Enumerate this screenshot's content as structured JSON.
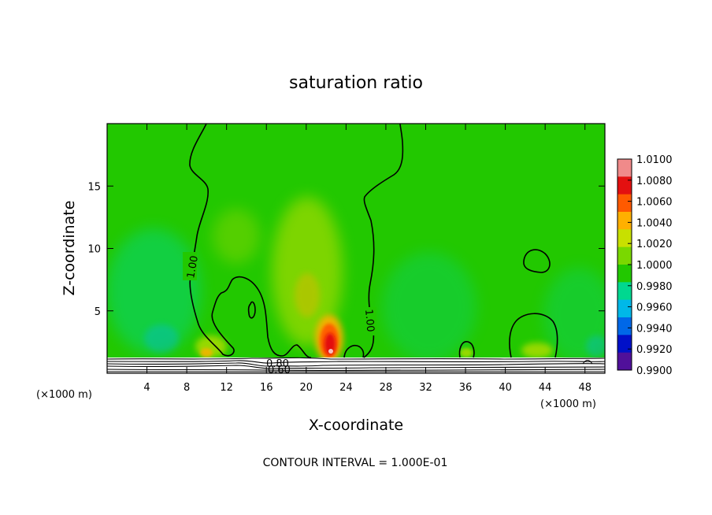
{
  "chart_data": {
    "type": "heatmap",
    "title": "saturation ratio",
    "xlabel": "X-coordinate",
    "ylabel": "Z-coordinate",
    "x_unit_left": "(×1000 m)",
    "x_unit_right": "(×1000 m)",
    "xlim": [
      0,
      50
    ],
    "ylim": [
      0,
      20
    ],
    "x_ticks": [
      4,
      8,
      12,
      16,
      20,
      24,
      28,
      32,
      36,
      40,
      44,
      48
    ],
    "y_ticks": [
      5,
      10,
      15
    ],
    "contour_interval_text": "CONTOUR INTERVAL = 1.000E-01",
    "contour_labels": [
      {
        "text": "1.00",
        "x": 8.6,
        "y": 8.8
      },
      {
        "text": "1.00",
        "x": 26.8,
        "y": 4.0
      },
      {
        "text": "0.80",
        "x": 17.3,
        "y": 0.8
      },
      {
        "text": "0.60",
        "x": 17.3,
        "y": 0.35
      }
    ],
    "colorbar": {
      "levels": [
        "1.0100",
        "1.0080",
        "1.0060",
        "1.0040",
        "1.0020",
        "1.0000",
        "0.9980",
        "0.9960",
        "0.9940",
        "0.9920",
        "0.9900"
      ],
      "colors": [
        "#f08a8a",
        "#e31010",
        "#ff5a00",
        "#ffb000",
        "#c8e000",
        "#7ad800",
        "#22c800",
        "#00d890",
        "#00b8e8",
        "#0068e8",
        "#0010c8",
        "#50109a"
      ]
    },
    "background_value": 1.0003
  }
}
